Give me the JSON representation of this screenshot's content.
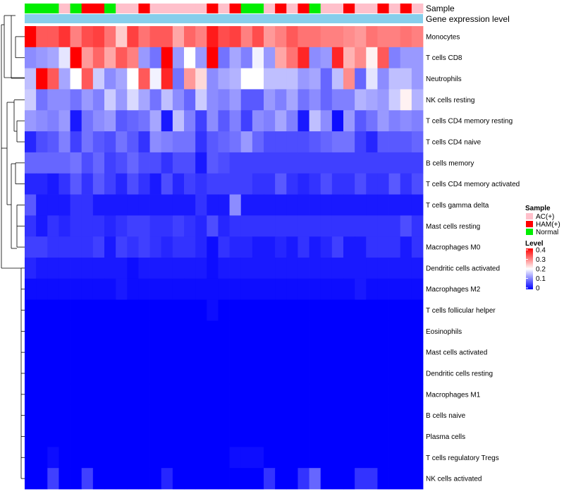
{
  "chart_data": {
    "type": "heatmap",
    "annotation_labels": {
      "sample": "Sample",
      "gene_expression": "Gene expression level"
    },
    "rows": [
      "Monocytes",
      "T cells CD8",
      "Neutrophils",
      "NK cells resting",
      "T cells CD4 memory resting",
      "T cells CD4 naive",
      "B cells memory",
      "T cells CD4 memory activated",
      "T cells gamma delta",
      "Mast cells resting",
      "Macrophages M0",
      "Dendritic cells activated",
      "Macrophages M2",
      "T cells follicular helper",
      "Eosinophils",
      "Mast cells activated",
      "Dendritic cells resting",
      "Macrophages M1",
      "B cells naive",
      "Plasma cells",
      "T cells regulatory  Tregs",
      "NK cells activated"
    ],
    "sample_groups": [
      "Normal",
      "Normal",
      "Normal",
      "AC(+)",
      "Normal",
      "HAM(+)",
      "HAM(+)",
      "Normal",
      "AC(+)",
      "AC(+)",
      "HAM(+)",
      "AC(+)",
      "AC(+)",
      "AC(+)",
      "AC(+)",
      "AC(+)",
      "HAM(+)",
      "AC(+)",
      "HAM(+)",
      "Normal",
      "Normal",
      "AC(+)",
      "HAM(+)",
      "AC(+)",
      "HAM(+)",
      "Normal",
      "AC(+)",
      "AC(+)",
      "HAM(+)",
      "AC(+)",
      "AC(+)",
      "HAM(+)",
      "AC(+)",
      "HAM(+)",
      "AC(+)"
    ],
    "values": [
      [
        0.4,
        0.33,
        0.33,
        0.36,
        0.3,
        0.34,
        0.35,
        0.31,
        0.24,
        0.35,
        0.31,
        0.33,
        0.33,
        0.27,
        0.32,
        0.3,
        0.38,
        0.34,
        0.35,
        0.3,
        0.34,
        0.28,
        0.3,
        0.33,
        0.31,
        0.31,
        0.3,
        0.3,
        0.29,
        0.28,
        0.31,
        0.3,
        0.3,
        0.31,
        0.3
      ],
      [
        0.11,
        0.12,
        0.13,
        0.18,
        0.4,
        0.28,
        0.32,
        0.27,
        0.33,
        0.3,
        0.12,
        0.09,
        0.4,
        0.12,
        0.2,
        0.12,
        0.4,
        0.09,
        0.13,
        0.1,
        0.19,
        0.12,
        0.27,
        0.31,
        0.37,
        0.11,
        0.12,
        0.37,
        0.26,
        0.29,
        0.21,
        0.33,
        0.1,
        0.12,
        0.12
      ],
      [
        0.15,
        0.4,
        0.33,
        0.13,
        0.2,
        0.33,
        0.16,
        0.11,
        0.13,
        0.2,
        0.33,
        0.19,
        0.37,
        0.09,
        0.28,
        0.23,
        0.11,
        0.13,
        0.14,
        0.2,
        0.2,
        0.15,
        0.15,
        0.15,
        0.12,
        0.13,
        0.08,
        0.15,
        0.29,
        0.08,
        0.18,
        0.11,
        0.15,
        0.15,
        0.12
      ],
      [
        0.16,
        0.09,
        0.11,
        0.11,
        0.09,
        0.12,
        0.1,
        0.16,
        0.12,
        0.17,
        0.13,
        0.09,
        0.15,
        0.11,
        0.08,
        0.16,
        0.11,
        0.1,
        0.12,
        0.07,
        0.07,
        0.12,
        0.1,
        0.13,
        0.09,
        0.11,
        0.08,
        0.1,
        0.1,
        0.14,
        0.13,
        0.12,
        0.16,
        0.21,
        0.14
      ],
      [
        0.12,
        0.11,
        0.1,
        0.12,
        0.02,
        0.09,
        0.11,
        0.12,
        0.07,
        0.08,
        0.09,
        0.13,
        0.02,
        0.15,
        0.1,
        0.05,
        0.11,
        0.07,
        0.1,
        0.05,
        0.11,
        0.1,
        0.13,
        0.1,
        0.02,
        0.15,
        0.11,
        0.01,
        0.12,
        0.07,
        0.09,
        0.12,
        0.1,
        0.11,
        0.1
      ],
      [
        0.03,
        0.06,
        0.07,
        0.1,
        0.05,
        0.09,
        0.07,
        0.06,
        0.09,
        0.07,
        0.04,
        0.11,
        0.1,
        0.09,
        0.09,
        0.04,
        0.07,
        0.08,
        0.09,
        0.12,
        0.08,
        0.06,
        0.06,
        0.06,
        0.06,
        0.07,
        0.08,
        0.09,
        0.09,
        0.05,
        0.03,
        0.07,
        0.07,
        0.07,
        0.08
      ],
      [
        0.08,
        0.08,
        0.08,
        0.08,
        0.09,
        0.06,
        0.08,
        0.05,
        0.06,
        0.08,
        0.06,
        0.06,
        0.04,
        0.06,
        0.06,
        0.02,
        0.07,
        0.06,
        0.05,
        0.05,
        0.05,
        0.05,
        0.05,
        0.05,
        0.05,
        0.05,
        0.05,
        0.05,
        0.05,
        0.05,
        0.05,
        0.05,
        0.05,
        0.05,
        0.05
      ],
      [
        0.03,
        0.03,
        0.02,
        0.04,
        0.07,
        0.04,
        0.07,
        0.05,
        0.03,
        0.06,
        0.04,
        0.02,
        0.06,
        0.03,
        0.05,
        0.04,
        0.05,
        0.05,
        0.05,
        0.05,
        0.04,
        0.04,
        0.07,
        0.04,
        0.03,
        0.04,
        0.06,
        0.04,
        0.04,
        0.06,
        0.04,
        0.04,
        0.07,
        0.04,
        0.06
      ],
      [
        0.07,
        0.02,
        0.02,
        0.02,
        0.04,
        0.04,
        0.02,
        0.02,
        0.02,
        0.02,
        0.02,
        0.02,
        0.02,
        0.02,
        0.02,
        0.04,
        0.02,
        0.02,
        0.11,
        0.02,
        0.02,
        0.02,
        0.02,
        0.02,
        0.02,
        0.02,
        0.02,
        0.02,
        0.02,
        0.02,
        0.02,
        0.02,
        0.02,
        0.02,
        0.02
      ],
      [
        0.04,
        0.02,
        0.04,
        0.03,
        0.04,
        0.04,
        0.04,
        0.03,
        0.04,
        0.05,
        0.05,
        0.04,
        0.04,
        0.05,
        0.04,
        0.03,
        0.06,
        0.03,
        0.04,
        0.04,
        0.04,
        0.04,
        0.04,
        0.04,
        0.04,
        0.04,
        0.04,
        0.04,
        0.04,
        0.04,
        0.04,
        0.04,
        0.04,
        0.06,
        0.04
      ],
      [
        0.05,
        0.05,
        0.04,
        0.04,
        0.04,
        0.04,
        0.05,
        0.02,
        0.05,
        0.04,
        0.05,
        0.04,
        0.03,
        0.04,
        0.04,
        0.03,
        0.01,
        0.04,
        0.03,
        0.03,
        0.02,
        0.02,
        0.03,
        0.02,
        0.04,
        0.02,
        0.03,
        0.05,
        0.02,
        0.02,
        0.04,
        0.04,
        0.04,
        0.02,
        0.04
      ],
      [
        0.03,
        0.02,
        0.02,
        0.02,
        0.02,
        0.02,
        0.02,
        0.02,
        0.02,
        0.01,
        0.02,
        0.02,
        0.02,
        0.02,
        0.02,
        0.02,
        0.01,
        0.02,
        0.02,
        0.02,
        0.02,
        0.02,
        0.02,
        0.02,
        0.02,
        0.02,
        0.02,
        0.02,
        0.02,
        0.02,
        0.02,
        0.02,
        0.02,
        0.02,
        0.02
      ],
      [
        0.01,
        0.01,
        0.01,
        0.01,
        0.01,
        0.01,
        0.01,
        0.01,
        0.02,
        0.01,
        0.01,
        0.01,
        0.01,
        0.01,
        0.01,
        0.01,
        0.01,
        0.01,
        0.01,
        0.01,
        0.01,
        0.01,
        0.01,
        0.01,
        0.01,
        0.01,
        0.01,
        0.01,
        0.01,
        0.02,
        0.01,
        0.01,
        0.01,
        0.01,
        0.01
      ],
      [
        0.0,
        0.0,
        0.0,
        0.0,
        0.0,
        0.0,
        0.0,
        0.0,
        0.0,
        0.0,
        0.0,
        0.0,
        0.0,
        0.0,
        0.0,
        0.0,
        0.01,
        0.0,
        0.0,
        0.0,
        0.0,
        0.0,
        0.0,
        0.0,
        0.0,
        0.0,
        0.0,
        0.0,
        0.0,
        0.0,
        0.0,
        0.0,
        0.0,
        0.0,
        0.0
      ],
      [
        0.0,
        0.0,
        0.0,
        0.0,
        0.0,
        0.0,
        0.0,
        0.0,
        0.0,
        0.0,
        0.0,
        0.0,
        0.0,
        0.0,
        0.0,
        0.0,
        0.0,
        0.0,
        0.0,
        0.0,
        0.0,
        0.0,
        0.0,
        0.0,
        0.0,
        0.0,
        0.0,
        0.0,
        0.0,
        0.0,
        0.0,
        0.0,
        0.0,
        0.0,
        0.0
      ],
      [
        0.0,
        0.0,
        0.0,
        0.0,
        0.0,
        0.0,
        0.0,
        0.0,
        0.0,
        0.0,
        0.0,
        0.0,
        0.0,
        0.0,
        0.0,
        0.0,
        0.0,
        0.0,
        0.0,
        0.0,
        0.0,
        0.0,
        0.0,
        0.0,
        0.0,
        0.0,
        0.0,
        0.0,
        0.0,
        0.0,
        0.0,
        0.0,
        0.0,
        0.0,
        0.0
      ],
      [
        0.0,
        0.0,
        0.0,
        0.0,
        0.0,
        0.0,
        0.0,
        0.0,
        0.0,
        0.0,
        0.0,
        0.0,
        0.0,
        0.0,
        0.0,
        0.0,
        0.0,
        0.0,
        0.0,
        0.0,
        0.0,
        0.0,
        0.0,
        0.0,
        0.0,
        0.0,
        0.0,
        0.0,
        0.0,
        0.0,
        0.0,
        0.0,
        0.0,
        0.0,
        0.0
      ],
      [
        0.0,
        0.0,
        0.0,
        0.0,
        0.0,
        0.0,
        0.0,
        0.0,
        0.0,
        0.0,
        0.0,
        0.0,
        0.0,
        0.0,
        0.0,
        0.0,
        0.0,
        0.0,
        0.0,
        0.0,
        0.0,
        0.0,
        0.0,
        0.0,
        0.0,
        0.0,
        0.0,
        0.0,
        0.0,
        0.0,
        0.0,
        0.0,
        0.0,
        0.0,
        0.0
      ],
      [
        0.0,
        0.0,
        0.0,
        0.0,
        0.0,
        0.0,
        0.0,
        0.0,
        0.0,
        0.0,
        0.0,
        0.0,
        0.0,
        0.0,
        0.0,
        0.0,
        0.0,
        0.0,
        0.0,
        0.0,
        0.0,
        0.0,
        0.0,
        0.0,
        0.0,
        0.0,
        0.0,
        0.0,
        0.0,
        0.0,
        0.0,
        0.0,
        0.0,
        0.0,
        0.0
      ],
      [
        0.0,
        0.0,
        0.0,
        0.0,
        0.0,
        0.0,
        0.0,
        0.0,
        0.0,
        0.0,
        0.0,
        0.0,
        0.0,
        0.0,
        0.0,
        0.0,
        0.0,
        0.0,
        0.0,
        0.0,
        0.0,
        0.0,
        0.0,
        0.0,
        0.0,
        0.0,
        0.0,
        0.0,
        0.0,
        0.0,
        0.0,
        0.0,
        0.0,
        0.0,
        0.0
      ],
      [
        0.0,
        0.0,
        0.01,
        0.0,
        0.0,
        0.0,
        0.0,
        0.0,
        0.0,
        0.0,
        0.0,
        0.0,
        0.0,
        0.0,
        0.0,
        0.0,
        0.0,
        0.0,
        0.01,
        0.01,
        0.01,
        0.0,
        0.0,
        0.0,
        0.0,
        0.0,
        0.0,
        0.0,
        0.0,
        0.0,
        0.0,
        0.0,
        0.0,
        0.0,
        0.0
      ],
      [
        0.0,
        0.0,
        0.05,
        0.0,
        0.0,
        0.05,
        0.0,
        0.0,
        0.0,
        0.0,
        0.0,
        0.0,
        0.03,
        0.0,
        0.0,
        0.0,
        0.0,
        0.0,
        0.0,
        0.0,
        0.0,
        0.04,
        0.0,
        0.0,
        0.04,
        0.08,
        0.0,
        0.0,
        0.0,
        0.04,
        0.04,
        0.0,
        0.0,
        0.0,
        0.0
      ]
    ],
    "legend": {
      "sample_title": "Sample",
      "groups": [
        {
          "label": "AC(+)",
          "color": "#FFC0CB"
        },
        {
          "label": "HAM(+)",
          "color": "#FF0000"
        },
        {
          "label": "Normal",
          "color": "#00EE00"
        }
      ],
      "level_title": "Level",
      "level_ticks": [
        "0.4",
        "0.3",
        "0.2",
        "0.1",
        "0"
      ],
      "level_range": [
        0,
        0.4
      ]
    },
    "colors": {
      "low": "#0000FF",
      "mid": "#FFFFFF",
      "high": "#FF0000",
      "annotation_bar": "#87CEEB"
    }
  }
}
